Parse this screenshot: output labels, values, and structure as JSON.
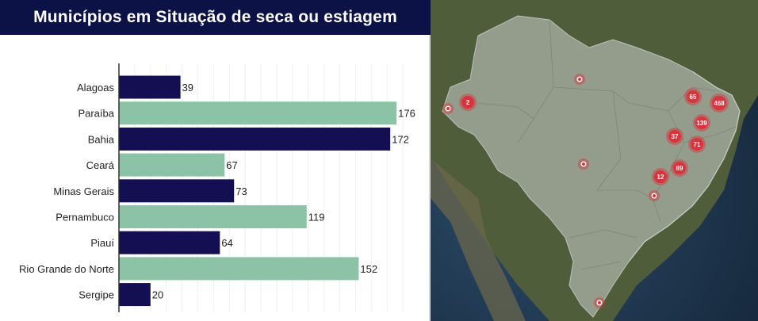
{
  "title": "Municípios em Situação de seca ou estiagem",
  "colors": {
    "dark": "#140f52",
    "light": "#8cc3a6",
    "title_bg": "#0c1245",
    "marker": "#d7343c"
  },
  "chart_data": {
    "type": "bar",
    "orientation": "horizontal",
    "title": "Municípios em Situação de seca ou estiagem",
    "categories": [
      "Alagoas",
      "Paraíba",
      "Bahia",
      "Ceará",
      "Minas Gerais",
      "Pernambuco",
      "Piauí",
      "Rio Grande do Norte",
      "Sergipe"
    ],
    "values": [
      39,
      176,
      172,
      67,
      73,
      119,
      64,
      152,
      20
    ],
    "bar_colors": [
      "#140f52",
      "#8cc3a6",
      "#140f52",
      "#8cc3a6",
      "#140f52",
      "#8cc3a6",
      "#140f52",
      "#8cc3a6",
      "#140f52"
    ],
    "xlim": [
      0,
      190
    ],
    "grid": true,
    "data_labels": true
  },
  "map": {
    "cluster_markers": [
      "2",
      "65",
      "468",
      "139",
      "37",
      "71",
      "12",
      "89"
    ]
  }
}
